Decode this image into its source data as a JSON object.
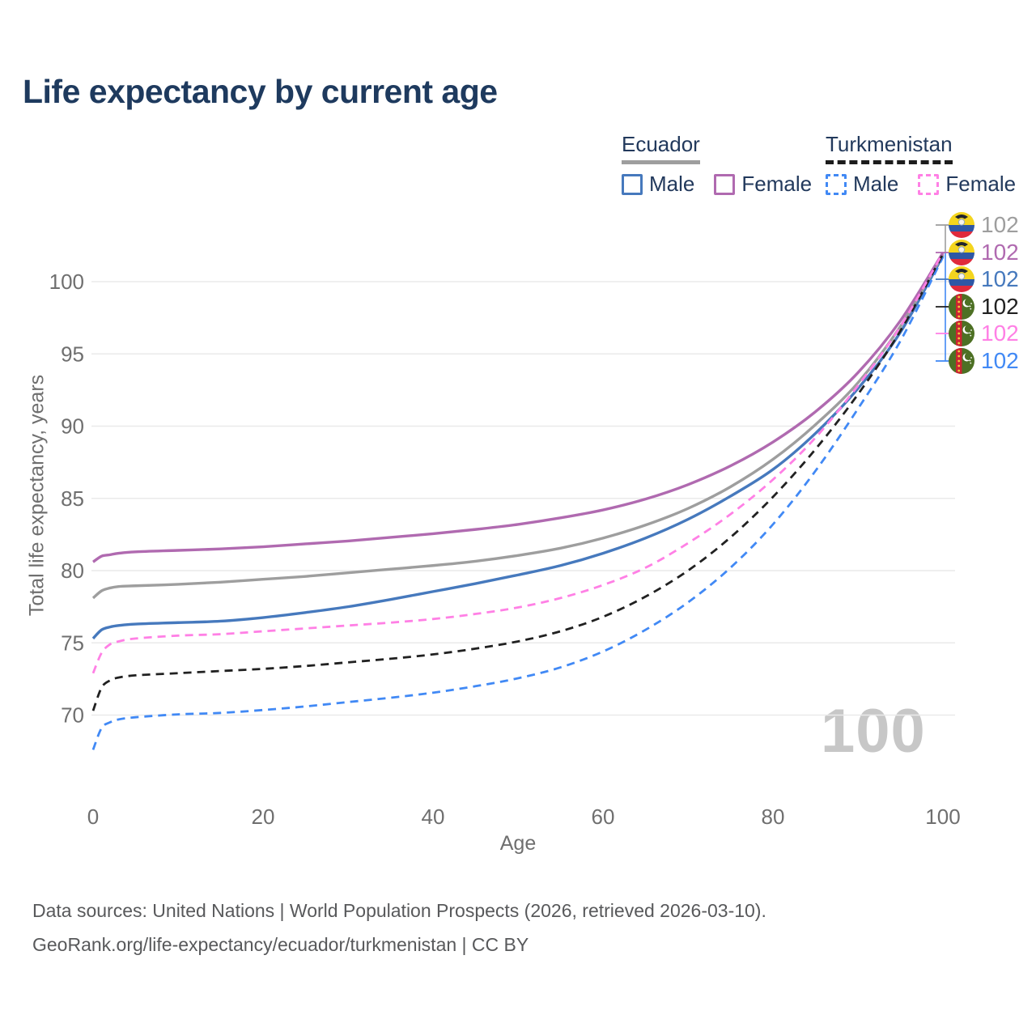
{
  "title": "Life expectancy by current age",
  "colors": {
    "title_text": "#1e3a5e",
    "legend_text": "#22395c",
    "axis_text": "#6f6f6f",
    "grid": "#eaeaea",
    "watermark": "#c7c7c7",
    "footer_text": "#58595b"
  },
  "legend": {
    "groups": [
      {
        "label": "Ecuador",
        "line_style": "solid",
        "line_color": "#9e9e9e",
        "items": [
          {
            "label": "Male",
            "color": "#4679bd",
            "dashed": false
          },
          {
            "label": "Female",
            "color": "#b06ab0",
            "dashed": false
          }
        ]
      },
      {
        "label": "Turkmenistan",
        "line_style": "dashed",
        "line_color": "#1c1c1c",
        "items": [
          {
            "label": "Male",
            "color": "#4189f5",
            "dashed": true
          },
          {
            "label": "Female",
            "color": "#ff80e5",
            "dashed": true
          }
        ]
      }
    ]
  },
  "watermark": "100",
  "footer": {
    "line1": "Data sources: United Nations | World Population Prospects (2026, retrieved 2026-03-10).",
    "line2": "GeoRank.org/life-expectancy/ecuador/turkmenistan | CC BY"
  },
  "chart_data": {
    "type": "line",
    "title": "Life expectancy by current age",
    "xlabel": "Age",
    "ylabel": "Total life expectancy, years",
    "xlim": [
      0,
      100
    ],
    "ylim": [
      67,
      103
    ],
    "xticks": [
      0,
      20,
      40,
      60,
      80,
      100
    ],
    "yticks": [
      70,
      75,
      80,
      85,
      90,
      95,
      100
    ],
    "grid": "horizontal-only",
    "legend_position": "top-right",
    "x": [
      0,
      1,
      2,
      3,
      5,
      10,
      15,
      20,
      25,
      30,
      35,
      40,
      45,
      50,
      55,
      60,
      65,
      70,
      75,
      80,
      85,
      90,
      95,
      100
    ],
    "series": [
      {
        "name": "Ecuador total",
        "country": "Ecuador",
        "sex": "total",
        "color": "#9e9e9e",
        "dashed": false,
        "flag": "ecuador",
        "end_label": "102",
        "values": [
          78.1,
          78.6,
          78.8,
          78.9,
          78.95,
          79.05,
          79.2,
          79.4,
          79.6,
          79.85,
          80.1,
          80.35,
          80.65,
          81.05,
          81.55,
          82.25,
          83.15,
          84.3,
          85.8,
          87.7,
          90.1,
          93.0,
          96.9,
          101.9
        ]
      },
      {
        "name": "Ecuador female",
        "country": "Ecuador",
        "sex": "female",
        "color": "#b06ab0",
        "dashed": false,
        "flag": "ecuador",
        "end_label": "102",
        "values": [
          80.6,
          81.0,
          81.1,
          81.2,
          81.3,
          81.4,
          81.5,
          81.65,
          81.85,
          82.05,
          82.3,
          82.55,
          82.85,
          83.2,
          83.65,
          84.2,
          84.95,
          85.95,
          87.25,
          88.9,
          91.0,
          93.7,
          97.3,
          102.0
        ]
      },
      {
        "name": "Ecuador male",
        "country": "Ecuador",
        "sex": "male",
        "color": "#4679bd",
        "dashed": false,
        "flag": "ecuador",
        "end_label": "102",
        "values": [
          75.3,
          75.9,
          76.1,
          76.2,
          76.3,
          76.4,
          76.5,
          76.75,
          77.1,
          77.5,
          78.0,
          78.55,
          79.1,
          79.7,
          80.35,
          81.2,
          82.25,
          83.55,
          85.15,
          87.0,
          89.5,
          92.6,
          96.5,
          101.8
        ]
      },
      {
        "name": "Turkmenistan total",
        "country": "Turkmenistan",
        "sex": "total",
        "color": "#212121",
        "dashed": true,
        "flag": "turkmenistan",
        "end_label": "102",
        "values": [
          70.3,
          71.9,
          72.4,
          72.6,
          72.75,
          72.9,
          73.05,
          73.2,
          73.4,
          73.65,
          73.9,
          74.2,
          74.6,
          75.1,
          75.8,
          76.8,
          78.2,
          80.0,
          82.3,
          85.1,
          88.4,
          92.2,
          96.6,
          101.9
        ]
      },
      {
        "name": "Turkmenistan female",
        "country": "Turkmenistan",
        "sex": "female",
        "color": "#ff80e5",
        "dashed": true,
        "flag": "turkmenistan",
        "end_label": "102",
        "values": [
          72.9,
          74.3,
          74.9,
          75.1,
          75.3,
          75.5,
          75.6,
          75.8,
          76.0,
          76.2,
          76.4,
          76.65,
          77.0,
          77.45,
          78.1,
          79.0,
          80.2,
          81.9,
          83.9,
          86.3,
          89.2,
          92.8,
          96.9,
          102.0
        ]
      },
      {
        "name": "Turkmenistan male",
        "country": "Turkmenistan",
        "sex": "male",
        "color": "#4189f5",
        "dashed": true,
        "flag": "turkmenistan",
        "end_label": "102",
        "values": [
          67.6,
          69.1,
          69.5,
          69.7,
          69.85,
          70.05,
          70.15,
          70.35,
          70.6,
          70.9,
          71.2,
          71.55,
          72.0,
          72.55,
          73.3,
          74.4,
          75.9,
          77.8,
          80.2,
          83.2,
          86.9,
          91.2,
          95.9,
          101.7
        ]
      }
    ]
  }
}
